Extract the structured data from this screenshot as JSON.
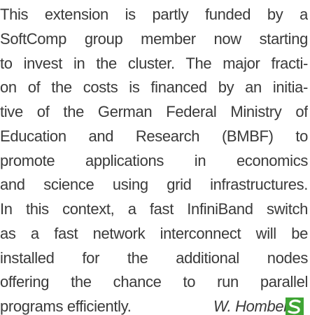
{
  "paragraph": {
    "lines": [
      "This extension is partly funded by a",
      "SoftComp group member now starting",
      "to invest in the cluster. The major fracti-",
      "on of the costs is financed by an initia-",
      "tive of the German Federal Ministry of",
      "Education and Research (BMBF) to",
      "promote applications in economics",
      "and science using grid infrastructures.",
      "In this context, a fast InfiniBand switch",
      "as a fast network interconnect will be",
      "installed for the additional nodes",
      "offering the chance to run parallel"
    ],
    "last_line": "programs efficiently.",
    "author": "W. Homberg"
  }
}
